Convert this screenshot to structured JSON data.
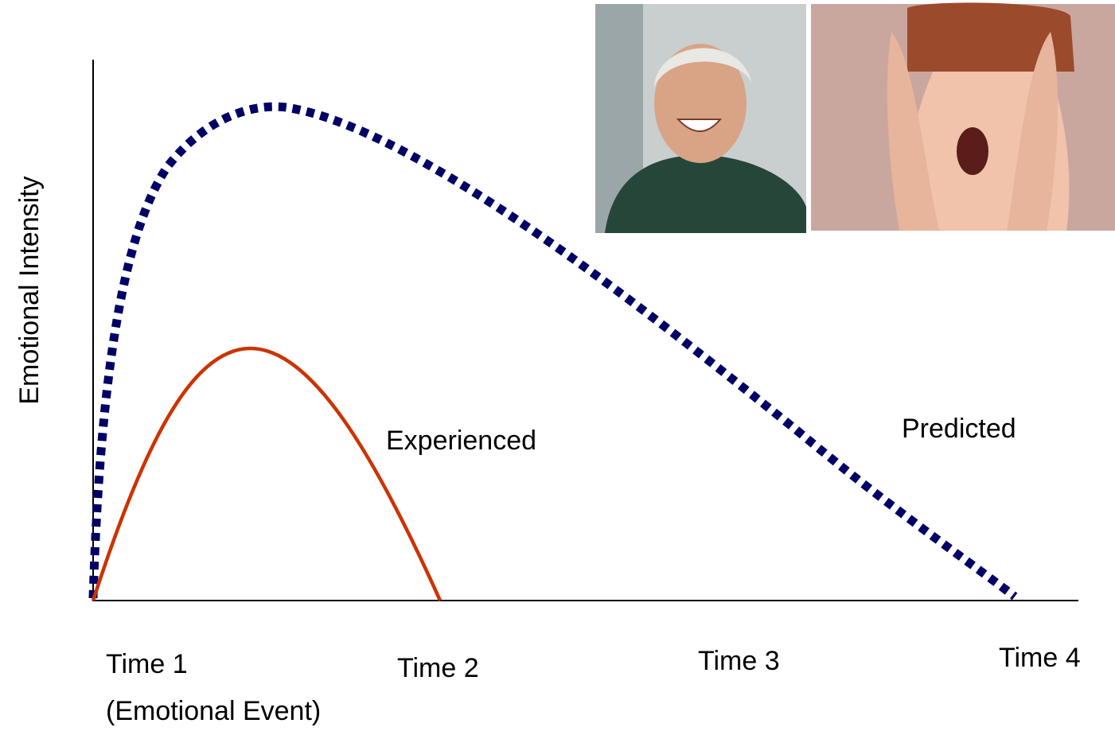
{
  "axis_label": "Emotional Intensity",
  "curves": [
    {
      "label": "Experienced"
    },
    {
      "label": "Predicted"
    }
  ],
  "time_labels": [
    "Time 1",
    "Time 2",
    "Time 3",
    "Time 4"
  ],
  "event_label": "(Emotional Event)"
}
